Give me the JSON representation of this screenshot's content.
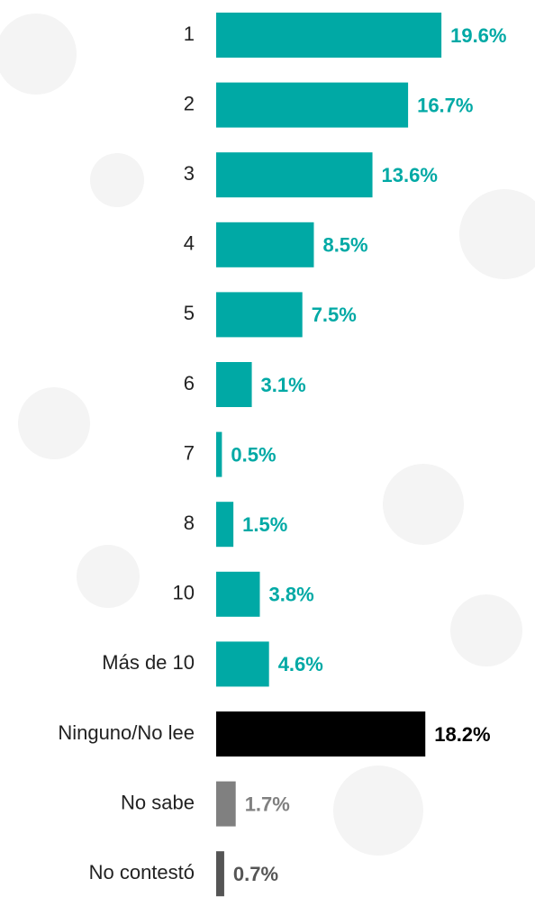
{
  "chart_data": {
    "type": "hbar",
    "categories": [
      "1",
      "2",
      "3",
      "4",
      "5",
      "6",
      "7",
      "8",
      "10",
      "Más de 10",
      "Ninguno/No lee",
      "No sabe",
      "No contestó"
    ],
    "values": [
      19.6,
      16.7,
      13.6,
      8.5,
      7.5,
      3.1,
      0.5,
      1.5,
      3.8,
      4.6,
      18.2,
      1.7,
      0.7
    ],
    "value_labels": [
      "19.6%",
      "16.7%",
      "13.6%",
      "8.5%",
      "7.5%",
      "3.1%",
      "0.5%",
      "1.5%",
      "3.8%",
      "4.6%",
      "18.2%",
      "1.7%",
      "0.7%"
    ],
    "colors": [
      "#00a9a5",
      "#00a9a5",
      "#00a9a5",
      "#00a9a5",
      "#00a9a5",
      "#00a9a5",
      "#00a9a5",
      "#00a9a5",
      "#00a9a5",
      "#00a9a5",
      "#000000",
      "#808080",
      "#555555"
    ]
  }
}
